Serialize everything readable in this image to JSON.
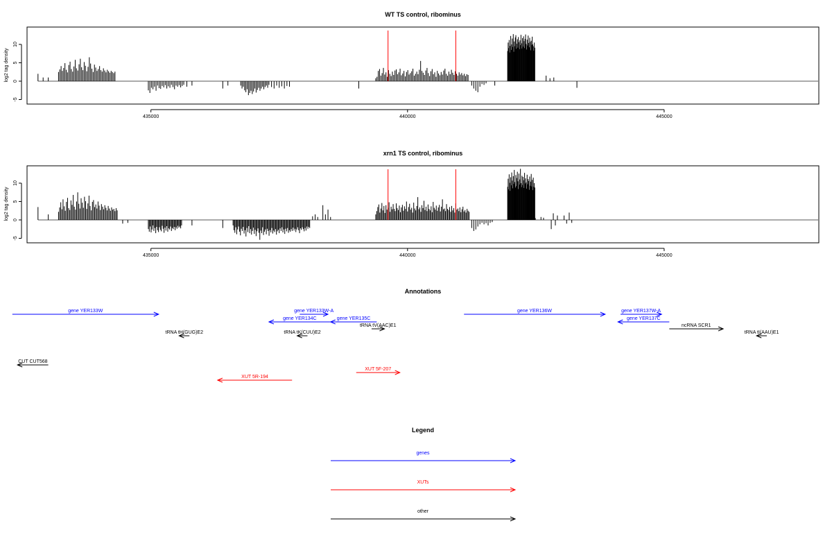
{
  "chart_data": [
    {
      "type": "bar",
      "title": "WT TS control, ribominus",
      "ylabel": "log2 tag density",
      "xlabel": "",
      "xlim": [
        432600,
        448000
      ],
      "ylim": [
        -6,
        14
      ],
      "xticks": [
        435000,
        440000,
        445000
      ],
      "yticks": [
        -5,
        0,
        5,
        10
      ],
      "marker_lines": [
        439620,
        440940
      ],
      "marker_color": "#ff0000",
      "bar_color": "#000000",
      "segments": [
        {
          "x0": 432800,
          "x1": 433000,
          "dx": 100,
          "values": [
            2,
            1,
            1
          ]
        },
        {
          "x0": 433200,
          "x1": 434300,
          "dx": 25,
          "values": [
            2.5,
            3.2,
            4.1,
            2.8,
            3.6,
            4.9,
            3.1,
            2.4,
            4.4,
            5.3,
            3.3,
            2.6,
            4.0,
            5.8,
            3.5,
            2.9,
            4.6,
            6.1,
            3.8,
            3.0,
            5.2,
            4.2,
            2.7,
            3.9,
            6.5,
            4.8,
            3.4,
            2.5,
            4.5,
            3.7,
            2.8,
            3.3,
            4.1,
            3.0,
            2.6,
            3.5,
            2.9,
            2.4,
            3.1,
            2.7,
            2.3,
            2.8,
            2.5,
            2.2,
            2.6
          ]
        },
        {
          "x0": 434950,
          "x1": 435650,
          "dx": 30,
          "values": [
            -2.5,
            -3.2,
            -1.8,
            -2.2,
            -1.5,
            -2.6,
            -1.2,
            -1.9,
            -2.1,
            -1.3,
            -1.7,
            -1.1,
            -2.0,
            -1.4,
            -1.8,
            -1.0,
            -1.6,
            -2.2,
            -1.2,
            -1.5,
            -1.1,
            -1.7,
            -1.3,
            -1.0
          ]
        },
        {
          "x0": 435700,
          "x1": 435900,
          "dx": 100,
          "values": [
            -1.5,
            -1.2
          ]
        },
        {
          "x0": 436400,
          "x1": 436600,
          "dx": 100,
          "values": [
            -2,
            -1.2
          ]
        },
        {
          "x0": 436750,
          "x1": 437300,
          "dx": 25,
          "values": [
            -1.2,
            -2.0,
            -1.5,
            -2.5,
            -3.0,
            -2.2,
            -3.8,
            -3.2,
            -2.6,
            -3.5,
            -2.8,
            -2.0,
            -3.1,
            -2.4,
            -1.8,
            -2.6,
            -2.0,
            -1.5,
            -2.2,
            -1.6,
            -1.2,
            -1.8,
            -1.0
          ]
        },
        {
          "x0": 437350,
          "x1": 437700,
          "dx": 50,
          "values": [
            -1.6,
            -2.0,
            -1.2,
            -1.8,
            -1.4,
            -2.0,
            -1.3,
            -1.5
          ]
        },
        {
          "x0": 439050,
          "x1": 439050,
          "dx": 100,
          "values": [
            -2
          ]
        },
        {
          "x0": 439380,
          "x1": 441200,
          "dx": 25,
          "values": [
            0.8,
            1.2,
            2.8,
            3.3,
            1.5,
            2.2,
            3.6,
            1.8,
            2.4,
            1.2,
            3.0,
            2.0,
            1.4,
            2.6,
            1.7,
            2.9,
            3.2,
            1.9,
            2.4,
            3.4,
            1.6,
            2.1,
            2.8,
            1.3,
            2.5,
            3.0,
            1.8,
            2.2,
            2.7,
            3.4,
            1.5,
            2.0,
            2.6,
            1.9,
            3.1,
            5.5,
            2.8,
            2.3,
            1.7,
            2.9,
            3.6,
            2.2,
            1.4,
            2.7,
            3.3,
            1.9,
            2.4,
            1.2,
            2.8,
            2.1,
            1.6,
            2.5,
            1.8,
            2.9,
            3.4,
            2.0,
            1.5,
            2.6,
            1.9,
            3.1,
            2.3,
            1.7,
            2.7,
            2.0,
            1.5,
            2.4,
            1.8,
            2.2,
            1.6,
            2.0,
            1.4,
            1.9,
            1.7
          ]
        },
        {
          "x0": 441250,
          "x1": 441550,
          "dx": 40,
          "values": [
            -1.2,
            -2.0,
            -2.6,
            -3.0,
            -1.5,
            -0.8,
            -1.0,
            -0.6
          ]
        },
        {
          "x0": 441700,
          "x1": 441700,
          "dx": 100,
          "values": [
            -1.2
          ]
        },
        {
          "x0": 441950,
          "x1": 442480,
          "dx": 10,
          "values": [
            8.2,
            10.5,
            9.0,
            11.2,
            7.8,
            9.6,
            12.3,
            8.5,
            10.0,
            11.6,
            9.3,
            12.8,
            8.0,
            10.8,
            9.5,
            11.9,
            12.5,
            8.8,
            10.2,
            11.4,
            9.1,
            12.0,
            10.6,
            8.7,
            11.1,
            9.8,
            12.6,
            10.3,
            8.9,
            11.7,
            9.4,
            12.2,
            10.9,
            9.0,
            11.5,
            12.7,
            10.1,
            8.6,
            11.3,
            9.7,
            12.4,
            10.4,
            9.2,
            11.8,
            10.7,
            8.4,
            11.0,
            9.9,
            12.1,
            10.0,
            9.5,
            8.3,
            10.5,
            9.1
          ]
        },
        {
          "x0": 442700,
          "x1": 442850,
          "dx": 75,
          "values": [
            1.5,
            0.8,
            1.0
          ]
        },
        {
          "x0": 443300,
          "x1": 443300,
          "dx": 100,
          "values": [
            -1.8
          ]
        }
      ]
    },
    {
      "type": "bar",
      "title": "xrn1 TS control, ribominus",
      "ylabel": "log2 tag density",
      "xlabel": "",
      "xlim": [
        432600,
        448000
      ],
      "ylim": [
        -6,
        14
      ],
      "xticks": [
        435000,
        440000,
        445000
      ],
      "yticks": [
        -5,
        0,
        5,
        10
      ],
      "marker_lines": [
        439620,
        440940
      ],
      "marker_color": "#ff0000",
      "bar_color": "#000000",
      "segments": [
        {
          "x0": 432800,
          "x1": 432800,
          "dx": 100,
          "values": [
            3.5
          ]
        },
        {
          "x0": 433000,
          "x1": 433000,
          "dx": 100,
          "values": [
            1.5
          ]
        },
        {
          "x0": 433200,
          "x1": 434350,
          "dx": 22,
          "values": [
            2.2,
            3.4,
            4.8,
            2.9,
            5.6,
            3.7,
            2.5,
            4.9,
            6.0,
            3.2,
            2.7,
            5.3,
            4.1,
            6.8,
            3.6,
            2.8,
            5.0,
            7.5,
            4.4,
            3.1,
            5.9,
            4.7,
            3.3,
            6.3,
            5.1,
            3.0,
            4.5,
            6.6,
            3.8,
            2.6,
            4.9,
            5.4,
            3.5,
            4.2,
            3.1,
            5.0,
            3.9,
            2.7,
            4.3,
            3.6,
            2.9,
            4.0,
            3.3,
            2.6,
            3.8,
            3.1,
            2.5,
            3.4,
            2.8,
            3.0,
            2.4,
            3.2,
            2.6
          ]
        },
        {
          "x0": 434450,
          "x1": 434650,
          "dx": 100,
          "values": [
            -1.0,
            -0.8
          ]
        },
        {
          "x0": 434950,
          "x1": 435600,
          "dx": 18,
          "values": [
            -2.5,
            -3.2,
            -1.8,
            -3.4,
            -2.6,
            -1.5,
            -3.0,
            -2.2,
            -3.6,
            -1.9,
            -2.8,
            -3.3,
            -2.0,
            -2.7,
            -3.1,
            -1.6,
            -2.4,
            -3.5,
            -2.1,
            -2.9,
            -1.7,
            -3.2,
            -2.3,
            -2.6,
            -1.8,
            -3.0,
            -2.2,
            -2.5,
            -1.9,
            -2.8,
            -2.0,
            -2.4,
            -1.6,
            -2.1,
            -1.8,
            -2.3,
            -1.5
          ]
        },
        {
          "x0": 435800,
          "x1": 435800,
          "dx": 100,
          "values": [
            -1.5
          ]
        },
        {
          "x0": 436400,
          "x1": 436400,
          "dx": 100,
          "values": [
            -2.2
          ]
        },
        {
          "x0": 436600,
          "x1": 438100,
          "dx": 18,
          "values": [
            -1.5,
            -2.8,
            -3.5,
            -2.0,
            -3.9,
            -2.6,
            -1.8,
            -3.2,
            -4.2,
            -2.4,
            -3.0,
            -1.9,
            -3.7,
            -2.8,
            -4.5,
            -2.2,
            -3.3,
            -1.7,
            -3.6,
            -2.5,
            -4.0,
            -3.0,
            -2.1,
            -3.8,
            -2.7,
            -4.4,
            -3.1,
            -2.3,
            -3.5,
            -5.4,
            -2.9,
            -3.6,
            -2.0,
            -4.1,
            -3.2,
            -2.6,
            -3.9,
            -2.4,
            -3.0,
            -4.3,
            -2.8,
            -3.4,
            -2.2,
            -3.7,
            -2.9,
            -3.3,
            -2.5,
            -4.0,
            -3.1,
            -2.7,
            -3.6,
            -2.3,
            -3.0,
            -2.0,
            -3.4,
            -2.6,
            -3.8,
            -2.4,
            -3.1,
            -2.2,
            -3.5,
            -2.8,
            -3.2,
            -2.5,
            -3.0,
            -2.1,
            -2.9,
            -2.4,
            -3.3,
            -2.6,
            -2.0,
            -2.8,
            -3.6,
            -2.3,
            -2.7,
            -2.0,
            -2.5,
            -3.1,
            -2.2,
            -2.9,
            -1.8,
            -2.4,
            -1.9,
            -2.2
          ]
        },
        {
          "x0": 438150,
          "x1": 438250,
          "dx": 50,
          "values": [
            1.0,
            1.5,
            0.8
          ]
        },
        {
          "x0": 438350,
          "x1": 438500,
          "dx": 50,
          "values": [
            4.0,
            1.5,
            2.8,
            0.8
          ]
        },
        {
          "x0": 439380,
          "x1": 441200,
          "dx": 20,
          "values": [
            1.5,
            2.4,
            3.5,
            4.2,
            2.0,
            3.1,
            4.6,
            2.6,
            3.8,
            1.9,
            4.0,
            2.8,
            3.3,
            4.8,
            2.2,
            3.6,
            2.9,
            4.3,
            3.0,
            2.4,
            4.5,
            3.2,
            2.7,
            3.9,
            2.1,
            3.4,
            4.1,
            2.5,
            3.7,
            3.0,
            5.0,
            2.3,
            3.5,
            4.4,
            2.8,
            3.3,
            2.0,
            4.7,
            3.1,
            2.6,
            3.8,
            6.2,
            2.9,
            3.4,
            2.2,
            4.0,
            3.2,
            5.2,
            2.7,
            3.6,
            2.4,
            4.2,
            3.0,
            2.6,
            3.7,
            2.1,
            4.9,
            3.3,
            2.8,
            3.9,
            2.5,
            3.4,
            4.1,
            2.3,
            3.6,
            5.6,
            2.9,
            3.1,
            2.4,
            4.3,
            3.0,
            2.7,
            3.5,
            2.2,
            3.8,
            2.6,
            3.2,
            2.0,
            4.5,
            2.8,
            3.1,
            2.4,
            3.4,
            2.1,
            2.9,
            3.6,
            2.3,
            2.7,
            2.0,
            3.0,
            2.5,
            2.2
          ]
        },
        {
          "x0": 441250,
          "x1": 441700,
          "dx": 40,
          "values": [
            -2.2,
            -3.0,
            -2.6,
            -1.8,
            -1.2,
            -0.8,
            -1.2,
            -0.9,
            -1.5,
            -0.8,
            -0.6
          ]
        },
        {
          "x0": 441950,
          "x1": 442490,
          "dx": 10,
          "values": [
            9.0,
            11.2,
            8.3,
            12.4,
            10.1,
            7.9,
            11.6,
            9.4,
            12.9,
            10.7,
            8.6,
            11.9,
            9.8,
            13.6,
            10.3,
            8.8,
            12.2,
            9.2,
            11.4,
            13.1,
            10.5,
            8.4,
            12.6,
            9.6,
            11.0,
            13.9,
            10.0,
            8.9,
            12.0,
            9.5,
            11.7,
            10.8,
            8.7,
            12.8,
            9.9,
            11.3,
            10.2,
            8.5,
            12.3,
            9.7,
            11.1,
            10.6,
            8.2,
            11.8,
            9.3,
            10.4,
            12.5,
            9.1,
            10.9,
            8.1,
            11.5,
            9.0,
            10.0,
            8.8,
            0.5
          ]
        },
        {
          "x0": 442600,
          "x1": 442650,
          "dx": 50,
          "values": [
            0.8,
            0.6
          ]
        },
        {
          "x0": 442800,
          "x1": 442950,
          "dx": 40,
          "values": [
            -2.5,
            1.8,
            -1.5,
            1.2
          ]
        },
        {
          "x0": 443050,
          "x1": 443200,
          "dx": 50,
          "values": [
            1.2,
            -1.0,
            2.0,
            -0.8
          ]
        }
      ]
    }
  ],
  "annotations": {
    "title": "Annotations",
    "items": [
      {
        "label": "gene YER133W",
        "x0": 432300,
        "x1": 435150,
        "row": 0,
        "dir": "right",
        "color": "#0000ff"
      },
      {
        "label": "gene YER133W-A",
        "x0": 437900,
        "x1": 438450,
        "row": 0,
        "dir": "right",
        "color": "#0000ff"
      },
      {
        "label": "gene YER134C",
        "x0": 437300,
        "x1": 438500,
        "row": 1,
        "dir": "left",
        "color": "#0000ff"
      },
      {
        "label": "gene YER135C",
        "x0": 438500,
        "x1": 439400,
        "row": 1,
        "dir": "left",
        "color": "#0000ff"
      },
      {
        "label": "gene YER136W",
        "x0": 441100,
        "x1": 443850,
        "row": 0,
        "dir": "right",
        "color": "#0000ff"
      },
      {
        "label": "gene YER137W-A",
        "x0": 444150,
        "x1": 444950,
        "row": 0,
        "dir": "right",
        "color": "#0000ff"
      },
      {
        "label": "gene YER137C",
        "x0": 444100,
        "x1": 445100,
        "row": 1,
        "dir": "left",
        "color": "#0000ff"
      },
      {
        "label": "tRNA tV(AAC)E1",
        "x0": 439300,
        "x1": 439550,
        "row": 2,
        "dir": "right",
        "color": "#000000"
      },
      {
        "label": "ncRNA SCR1",
        "x0": 445100,
        "x1": 446150,
        "row": 2,
        "dir": "right",
        "color": "#000000"
      },
      {
        "label": "tRNA tH(GUG)E2",
        "x0": 435550,
        "x1": 435750,
        "row": 3,
        "dir": "left",
        "color": "#000000"
      },
      {
        "label": "tRNA tK(CUU)E2",
        "x0": 437850,
        "x1": 438050,
        "row": 3,
        "dir": "left",
        "color": "#000000"
      },
      {
        "label": "tRNA tI(AAU)E1",
        "x0": 446800,
        "x1": 447000,
        "row": 3,
        "dir": "left",
        "color": "#000000"
      },
      {
        "label": "CUT CUT568",
        "x0": 432400,
        "x1": 433000,
        "row": 4,
        "dir": "left",
        "color": "#000000"
      },
      {
        "label": "XUT 5F-207",
        "x0": 439000,
        "x1": 439850,
        "row": 5,
        "dir": "right",
        "color": "#ff0000"
      },
      {
        "label": "XUT 5R-194",
        "x0": 436300,
        "x1": 437750,
        "row": 6,
        "dir": "left",
        "color": "#ff0000"
      }
    ]
  },
  "legend": {
    "title": "Legend",
    "entries": [
      {
        "label": "genes",
        "color": "#0000ff"
      },
      {
        "label": "XUTs",
        "color": "#ff0000"
      },
      {
        "label": "other",
        "color": "#000000"
      }
    ]
  }
}
